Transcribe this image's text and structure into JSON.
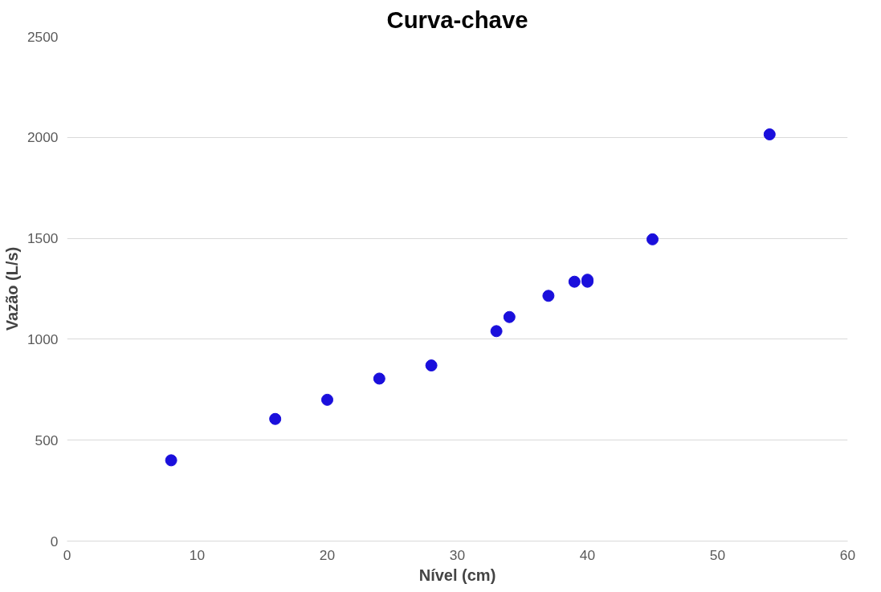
{
  "chart_data": {
    "type": "scatter",
    "title": "Curva-chave",
    "xlabel": "Nível (cm)",
    "ylabel": "Vazão (L/s)",
    "x": [
      8,
      16,
      20,
      24,
      28,
      33,
      34,
      37,
      39,
      40,
      40,
      45,
      54
    ],
    "series": [
      {
        "color": "#1a0fdc",
        "values": [
          400,
          605,
          700,
          805,
          870,
          1040,
          1110,
          1215,
          1285,
          1295,
          1285,
          1495,
          2015
        ]
      }
    ],
    "xlim": [
      0,
      60
    ],
    "xticks": [
      0,
      10,
      20,
      30,
      40,
      50,
      60
    ],
    "ylim": [
      0,
      2500
    ],
    "yticks": [
      0,
      500,
      1000,
      1500,
      2000,
      2500
    ],
    "grid": "y",
    "marker": "circle"
  }
}
